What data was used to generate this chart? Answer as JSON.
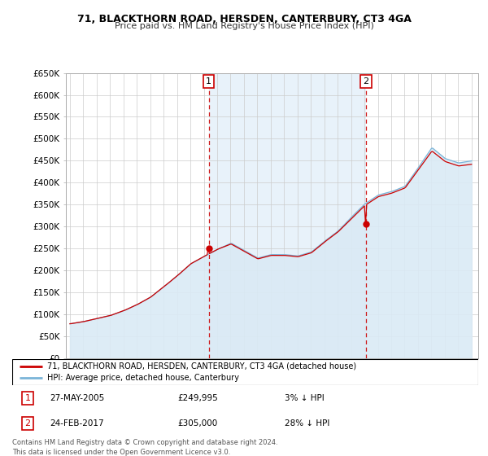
{
  "title": "71, BLACKTHORN ROAD, HERSDEN, CANTERBURY, CT3 4GA",
  "subtitle": "Price paid vs. HM Land Registry's House Price Index (HPI)",
  "legend_line1": "71, BLACKTHORN ROAD, HERSDEN, CANTERBURY, CT3 4GA (detached house)",
  "legend_line2": "HPI: Average price, detached house, Canterbury",
  "transaction1_date": "27-MAY-2005",
  "transaction1_price": "£249,995",
  "transaction1_pct": "3% ↓ HPI",
  "transaction1_year": 2005.37,
  "transaction1_price_val": 249995,
  "transaction2_date": "24-FEB-2017",
  "transaction2_price": "£305,000",
  "transaction2_pct": "28% ↓ HPI",
  "transaction2_year": 2017.12,
  "transaction2_price_val": 305000,
  "footer": "Contains HM Land Registry data © Crown copyright and database right 2024.\nThis data is licensed under the Open Government Licence v3.0.",
  "hpi_color": "#7ab4d8",
  "hpi_fill_color": "#daeaf5",
  "property_color": "#cc0000",
  "vline_color": "#cc0000",
  "ylim": [
    0,
    650000
  ],
  "xlim_left": 1994.7,
  "xlim_right": 2025.5,
  "yticks": [
    0,
    50000,
    100000,
    150000,
    200000,
    250000,
    300000,
    350000,
    400000,
    450000,
    500000,
    550000,
    600000,
    650000
  ],
  "ytick_labels": [
    "£0",
    "£50K",
    "£100K",
    "£150K",
    "£200K",
    "£250K",
    "£300K",
    "£350K",
    "£400K",
    "£450K",
    "£500K",
    "£550K",
    "£600K",
    "£650K"
  ],
  "bg_fill_color": "#e8f2fa",
  "label_box_color": "#cc0000"
}
